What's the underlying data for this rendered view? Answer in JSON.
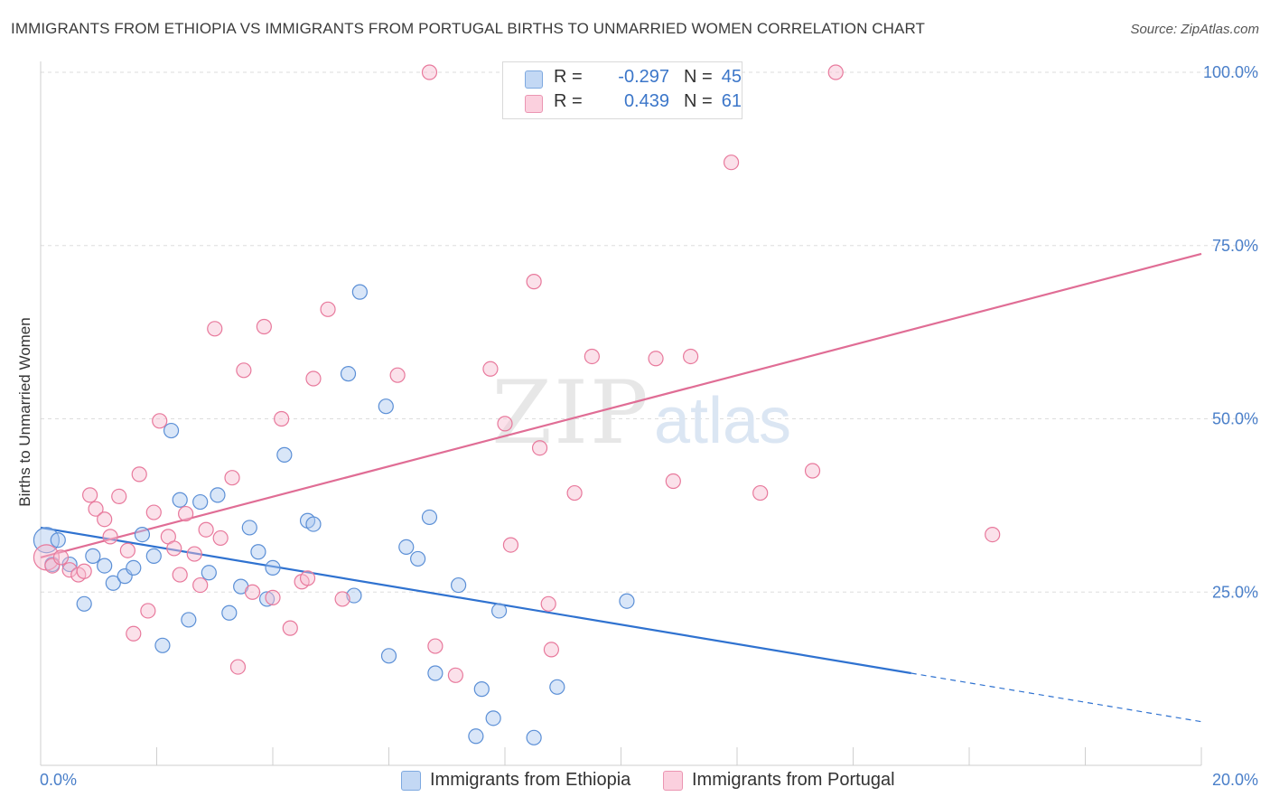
{
  "title": "IMMIGRANTS FROM ETHIOPIA VS IMMIGRANTS FROM PORTUGAL BIRTHS TO UNMARRIED WOMEN CORRELATION CHART",
  "source": "Source: ZipAtlas.com",
  "watermark": {
    "zip": "ZIP",
    "atlas": "atlas"
  },
  "legend": {
    "rows": [
      {
        "r_label": "R =",
        "r_value": "-0.297",
        "n_label": "N =",
        "n_value": "45",
        "color": "#aac8f0"
      },
      {
        "r_label": "R =",
        "r_value": "0.439",
        "n_label": "N =",
        "n_value": "61",
        "color": "#f7bcd0"
      }
    ]
  },
  "bottom_legend": [
    {
      "label": "Immigrants from Ethiopia",
      "color": "#aac8f0"
    },
    {
      "label": "Immigrants from Portugal",
      "color": "#f7bcd0"
    }
  ],
  "chart_data": {
    "type": "scatter",
    "xlabel": "",
    "ylabel": "Births to Unmarried Women",
    "xlim": [
      0,
      20
    ],
    "ylim": [
      0,
      100
    ],
    "x_tick_labels": [
      {
        "value": 0,
        "label": "0.0%"
      },
      {
        "value": 20,
        "label": "20.0%"
      }
    ],
    "y_tick_labels": [
      {
        "value": 25,
        "label": "25.0%"
      },
      {
        "value": 50,
        "label": "50.0%"
      },
      {
        "value": 75,
        "label": "75.0%"
      },
      {
        "value": 100,
        "label": "100.0%"
      }
    ],
    "grid": true,
    "series": [
      {
        "name": "Immigrants from Ethiopia",
        "color": "#5b8fd6",
        "fill": "#aac8f0",
        "trend": {
          "x0": 0,
          "y0": 34.3,
          "x1": 15,
          "y1": 13.3,
          "dash_to_x": 20,
          "dash_to_y": 6.3,
          "color": "#2f72d0"
        },
        "points": [
          [
            0.1,
            32.5
          ],
          [
            0.2,
            29
          ],
          [
            0.3,
            32.5
          ],
          [
            0.5,
            29
          ],
          [
            0.75,
            23.3
          ],
          [
            0.9,
            30.2
          ],
          [
            1.1,
            28.8
          ],
          [
            1.25,
            26.3
          ],
          [
            1.45,
            27.3
          ],
          [
            1.6,
            28.5
          ],
          [
            1.75,
            33.3
          ],
          [
            1.95,
            30.2
          ],
          [
            2.1,
            17.3
          ],
          [
            2.25,
            48.3
          ],
          [
            2.4,
            38.3
          ],
          [
            2.55,
            21
          ],
          [
            2.75,
            38
          ],
          [
            2.9,
            27.8
          ],
          [
            3.05,
            39
          ],
          [
            3.25,
            22
          ],
          [
            3.45,
            25.8
          ],
          [
            3.6,
            34.3
          ],
          [
            3.75,
            30.8
          ],
          [
            3.9,
            24
          ],
          [
            4.0,
            28.5
          ],
          [
            4.2,
            44.8
          ],
          [
            4.6,
            35.3
          ],
          [
            4.7,
            34.8
          ],
          [
            5.3,
            56.5
          ],
          [
            5.4,
            24.5
          ],
          [
            5.5,
            68.3
          ],
          [
            5.95,
            51.8
          ],
          [
            6.0,
            15.8
          ],
          [
            6.3,
            31.5
          ],
          [
            6.5,
            29.8
          ],
          [
            6.7,
            35.8
          ],
          [
            6.8,
            13.3
          ],
          [
            7.2,
            26
          ],
          [
            7.5,
            4.2
          ],
          [
            7.6,
            11
          ],
          [
            7.8,
            6.8
          ],
          [
            7.9,
            22.3
          ],
          [
            8.5,
            4
          ],
          [
            8.9,
            11.3
          ],
          [
            10.1,
            23.7
          ]
        ]
      },
      {
        "name": "Immigrants from Portugal",
        "color": "#e8799c",
        "fill": "#f7bcd0",
        "trend": {
          "x0": 0,
          "y0": 30,
          "x1": 20,
          "y1": 73.8,
          "color": "#e06d95"
        },
        "points": [
          [
            0.1,
            30
          ],
          [
            0.2,
            28.8
          ],
          [
            0.35,
            30
          ],
          [
            0.5,
            28.2
          ],
          [
            0.65,
            27.5
          ],
          [
            0.75,
            28
          ],
          [
            0.85,
            39
          ],
          [
            0.95,
            37
          ],
          [
            1.1,
            35.5
          ],
          [
            1.2,
            33
          ],
          [
            1.35,
            38.8
          ],
          [
            1.5,
            31
          ],
          [
            1.6,
            19
          ],
          [
            1.7,
            42
          ],
          [
            1.85,
            22.3
          ],
          [
            1.95,
            36.5
          ],
          [
            2.05,
            49.7
          ],
          [
            2.2,
            33
          ],
          [
            2.3,
            31.3
          ],
          [
            2.4,
            27.5
          ],
          [
            2.5,
            36.3
          ],
          [
            2.65,
            30.5
          ],
          [
            2.75,
            26
          ],
          [
            2.85,
            34
          ],
          [
            3.0,
            63
          ],
          [
            3.1,
            32.8
          ],
          [
            3.3,
            41.5
          ],
          [
            3.4,
            14.2
          ],
          [
            3.5,
            57
          ],
          [
            3.65,
            25
          ],
          [
            3.85,
            63.3
          ],
          [
            4.0,
            24.2
          ],
          [
            4.15,
            50
          ],
          [
            4.3,
            19.8
          ],
          [
            4.5,
            26.5
          ],
          [
            4.6,
            27
          ],
          [
            4.7,
            55.8
          ],
          [
            4.95,
            65.8
          ],
          [
            5.2,
            24
          ],
          [
            6.15,
            56.3
          ],
          [
            6.7,
            100
          ],
          [
            6.8,
            17.2
          ],
          [
            7.15,
            13
          ],
          [
            7.75,
            57.2
          ],
          [
            8.0,
            49.3
          ],
          [
            8.1,
            31.8
          ],
          [
            8.5,
            69.8
          ],
          [
            8.6,
            45.8
          ],
          [
            8.75,
            23.3
          ],
          [
            8.8,
            16.7
          ],
          [
            9.2,
            39.3
          ],
          [
            9.5,
            59
          ],
          [
            10.6,
            58.7
          ],
          [
            10.9,
            41
          ],
          [
            11.2,
            59
          ],
          [
            11.7,
            100
          ],
          [
            11.9,
            87
          ],
          [
            12.4,
            39.3
          ],
          [
            13.3,
            42.5
          ],
          [
            13.7,
            100
          ],
          [
            16.4,
            33.3
          ]
        ]
      }
    ]
  }
}
